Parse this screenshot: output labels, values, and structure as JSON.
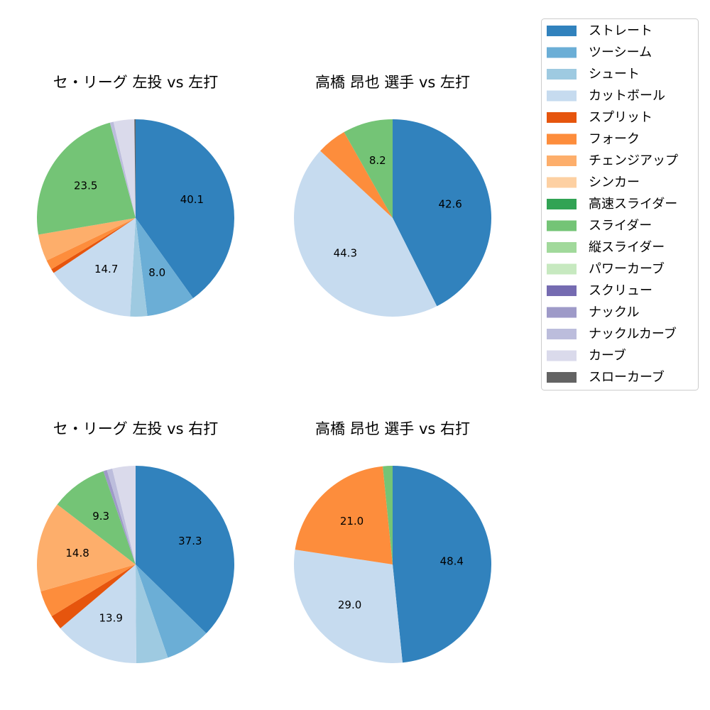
{
  "chart_data": [
    {
      "type": "pie",
      "title": "セ・リーグ 左投 vs 左打",
      "categories": [
        "ストレート",
        "ツーシーム",
        "シュート",
        "カットボール",
        "スプリット",
        "フォーク",
        "チェンジアップ",
        "スライダー",
        "ナックルカーブ",
        "カーブ",
        "スローカーブ"
      ],
      "values": [
        40.1,
        8.0,
        2.8,
        14.7,
        0.7,
        1.6,
        4.4,
        23.5,
        0.6,
        3.4,
        0.2
      ],
      "value_labels": [
        "40.1",
        "8.0",
        null,
        "14.7",
        null,
        null,
        null,
        "23.5",
        null,
        null,
        null
      ],
      "colors": [
        "#3182bd",
        "#6baed6",
        "#9ecae1",
        "#c6dbef",
        "#e6550d",
        "#fd8d3c",
        "#fdae6b",
        "#74c476",
        "#bcbddc",
        "#dadaeb",
        "#636363"
      ]
    },
    {
      "type": "pie",
      "title": "高橋 昂也 選手 vs 左打",
      "categories": [
        "ストレート",
        "カットボール",
        "フォーク",
        "スライダー"
      ],
      "values": [
        42.6,
        44.3,
        4.9,
        8.2
      ],
      "value_labels": [
        "42.6",
        "44.3",
        null,
        "8.2"
      ],
      "colors": [
        "#3182bd",
        "#c6dbef",
        "#fd8d3c",
        "#74c476"
      ]
    },
    {
      "type": "pie",
      "title": "セ・リーグ 左投 vs 右打",
      "categories": [
        "ストレート",
        "ツーシーム",
        "シュート",
        "カットボール",
        "スプリット",
        "フォーク",
        "チェンジアップ",
        "スライダー",
        "ナックル",
        "ナックルカーブ",
        "カーブ"
      ],
      "values": [
        37.3,
        7.4,
        5.2,
        13.9,
        2.4,
        4.4,
        14.8,
        9.3,
        0.6,
        0.9,
        3.8
      ],
      "value_labels": [
        "37.3",
        null,
        null,
        "13.9",
        null,
        null,
        "14.8",
        "9.3",
        null,
        null,
        null
      ],
      "colors": [
        "#3182bd",
        "#6baed6",
        "#9ecae1",
        "#c6dbef",
        "#e6550d",
        "#fd8d3c",
        "#fdae6b",
        "#74c476",
        "#9e9ac8",
        "#bcbddc",
        "#dadaeb"
      ]
    },
    {
      "type": "pie",
      "title": "高橋 昂也 選手 vs 右打",
      "categories": [
        "ストレート",
        "カットボール",
        "フォーク",
        "スライダー"
      ],
      "values": [
        48.4,
        29.0,
        21.0,
        1.6
      ],
      "value_labels": [
        "48.4",
        "29.0",
        "21.0",
        null
      ],
      "colors": [
        "#3182bd",
        "#c6dbef",
        "#fd8d3c",
        "#74c476"
      ]
    }
  ],
  "legend": {
    "names": [
      "ストレート",
      "ツーシーム",
      "シュート",
      "カットボール",
      "スプリット",
      "フォーク",
      "チェンジアップ",
      "シンカー",
      "高速スライダー",
      "スライダー",
      "縦スライダー",
      "パワーカーブ",
      "スクリュー",
      "ナックル",
      "ナックルカーブ",
      "カーブ",
      "スローカーブ"
    ],
    "colors": [
      "#3182bd",
      "#6baed6",
      "#9ecae1",
      "#c6dbef",
      "#e6550d",
      "#fd8d3c",
      "#fdae6b",
      "#fdd0a2",
      "#31a354",
      "#74c476",
      "#a1d99b",
      "#c7e9c0",
      "#756bb1",
      "#9e9ac8",
      "#bcbddc",
      "#dadaeb",
      "#636363"
    ]
  }
}
